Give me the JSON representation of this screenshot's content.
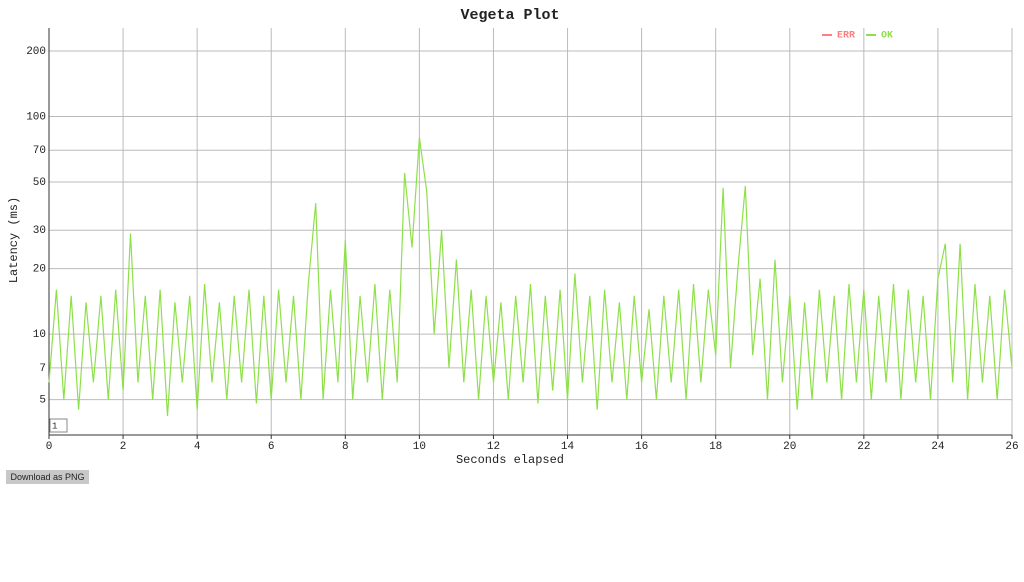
{
  "chart_data": {
    "type": "line",
    "title": "Vegeta Plot",
    "x_label": "Seconds elapsed",
    "y_label": "Latency (ms)",
    "log_y": true,
    "grid": true,
    "legend_position": "top-right",
    "legend": [
      {
        "name": "ERR",
        "color": "#ff7f7f"
      },
      {
        "name": "OK",
        "color": "#8ee04a"
      }
    ],
    "xlim": [
      0,
      26
    ],
    "xticks": [
      0,
      2,
      4,
      6,
      8,
      10,
      12,
      14,
      16,
      18,
      20,
      22,
      24,
      26
    ],
    "ylim": [
      3.44,
      255
    ],
    "yticks": [
      5,
      7,
      10,
      20,
      30,
      50,
      70,
      100,
      200
    ],
    "x": [
      0,
      0.2,
      0.4,
      0.6,
      0.8,
      1,
      1.2,
      1.4,
      1.6,
      1.8,
      2,
      2.2,
      2.4,
      2.6,
      2.8,
      3,
      3.2,
      3.4,
      3.6,
      3.8,
      4,
      4.2,
      4.4,
      4.6,
      4.8,
      5,
      5.2,
      5.4,
      5.6,
      5.8,
      6,
      6.2,
      6.4,
      6.6,
      6.8,
      7,
      7.2,
      7.4,
      7.6,
      7.8,
      8,
      8.2,
      8.4,
      8.6,
      8.8,
      9,
      9.2,
      9.4,
      9.6,
      9.8,
      10,
      10.2,
      10.4,
      10.6,
      10.8,
      11,
      11.2,
      11.4,
      11.6,
      11.8,
      12,
      12.2,
      12.4,
      12.6,
      12.8,
      13,
      13.2,
      13.4,
      13.6,
      13.8,
      14,
      14.2,
      14.4,
      14.6,
      14.8,
      15,
      15.2,
      15.4,
      15.6,
      15.8,
      16,
      16.2,
      16.4,
      16.6,
      16.8,
      17,
      17.2,
      17.4,
      17.6,
      17.8,
      18,
      18.2,
      18.4,
      18.6,
      18.8,
      19,
      19.2,
      19.4,
      19.6,
      19.8,
      20,
      20.2,
      20.4,
      20.6,
      20.8,
      21,
      21.2,
      21.4,
      21.6,
      21.8,
      22,
      22.2,
      22.4,
      22.6,
      22.8,
      23,
      23.2,
      23.4,
      23.6,
      23.8,
      24,
      24.2,
      24.4,
      24.6,
      24.8,
      25,
      25.2,
      25.4,
      25.6,
      25.8,
      26
    ],
    "series": [
      {
        "name": "OK",
        "color": "#8ee04a",
        "values": [
          6,
          16,
          5,
          15,
          4.5,
          14,
          6,
          15,
          5,
          16,
          5.5,
          29,
          6,
          15,
          5,
          16,
          4.2,
          14,
          6,
          15,
          4.5,
          17,
          6,
          14,
          5,
          15,
          6,
          16,
          4.8,
          15,
          5,
          16,
          6,
          15,
          5,
          17,
          40,
          5,
          16,
          6,
          27,
          5,
          15,
          6,
          17,
          5,
          16,
          6,
          55,
          25,
          80,
          45,
          10,
          30,
          7,
          22,
          6,
          16,
          5,
          15,
          6,
          14,
          5,
          15,
          6,
          17,
          4.8,
          15,
          5.5,
          16,
          5,
          19,
          6,
          15,
          4.5,
          16,
          6,
          14,
          5,
          15,
          6,
          13,
          5,
          15,
          6,
          16,
          5,
          17,
          6,
          16,
          8,
          47,
          7,
          20,
          48,
          8,
          18,
          5,
          22,
          6,
          15,
          4.5,
          14,
          5,
          16,
          6,
          15,
          5,
          17,
          6,
          16,
          5,
          15,
          6,
          17,
          5,
          16,
          6,
          15,
          5,
          18,
          26,
          6,
          26,
          5,
          17,
          6,
          15,
          5,
          16,
          7
        ]
      }
    ]
  },
  "ui": {
    "button": "Download as PNG",
    "range_label": "1"
  }
}
